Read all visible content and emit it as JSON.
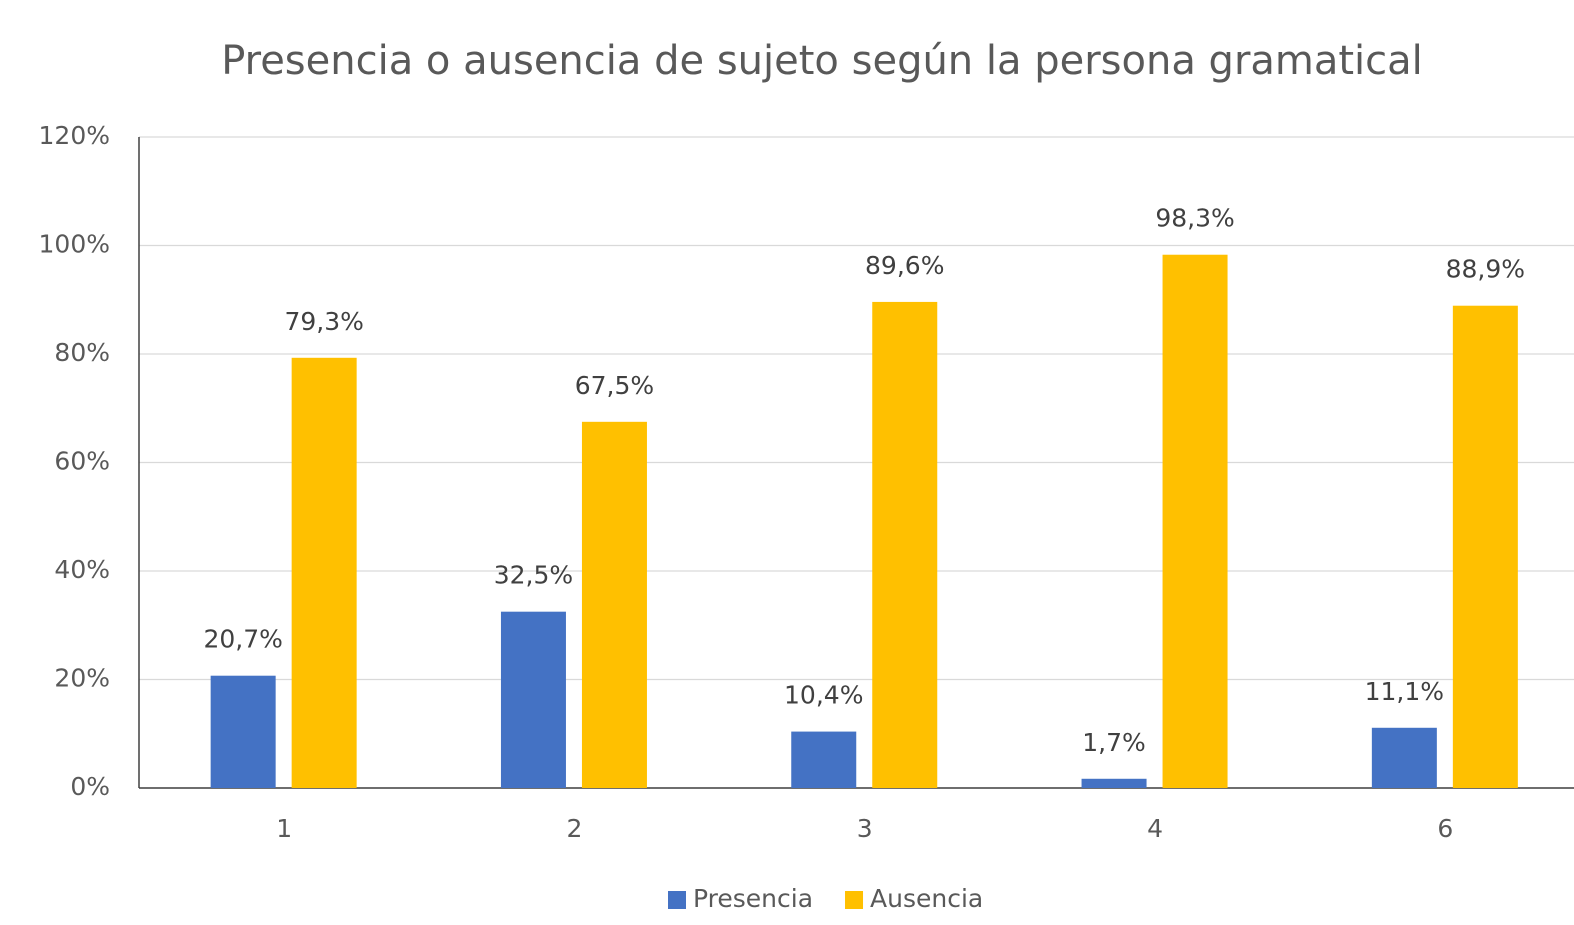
{
  "chart_data": {
    "type": "bar",
    "title": "Presencia o ausencia de sujeto según la persona gramatical",
    "categories": [
      "1",
      "2",
      "3",
      "4",
      "6"
    ],
    "series": [
      {
        "name": "Presencia",
        "color": "#4472c4",
        "values": [
          20.7,
          32.5,
          10.4,
          1.7,
          11.1
        ],
        "value_labels": [
          "20,7%",
          "32,5%",
          "10,4%",
          "1,7%",
          "11,1%"
        ]
      },
      {
        "name": "Ausencia",
        "color": "#ffc000",
        "values": [
          79.3,
          67.5,
          89.6,
          98.3,
          88.9
        ],
        "value_labels": [
          "79,3%",
          "67,5%",
          "89,6%",
          "98,3%",
          "88,9%"
        ]
      }
    ],
    "ylim": [
      0,
      120
    ],
    "yticks": [
      {
        "value": 0,
        "label": "0%"
      },
      {
        "value": 20,
        "label": "20%"
      },
      {
        "value": 40,
        "label": "40%"
      },
      {
        "value": 60,
        "label": "60%"
      },
      {
        "value": 80,
        "label": "80%"
      },
      {
        "value": 100,
        "label": "100%"
      },
      {
        "value": 120,
        "label": "120%"
      }
    ],
    "grid": true,
    "legend": "bottom"
  }
}
